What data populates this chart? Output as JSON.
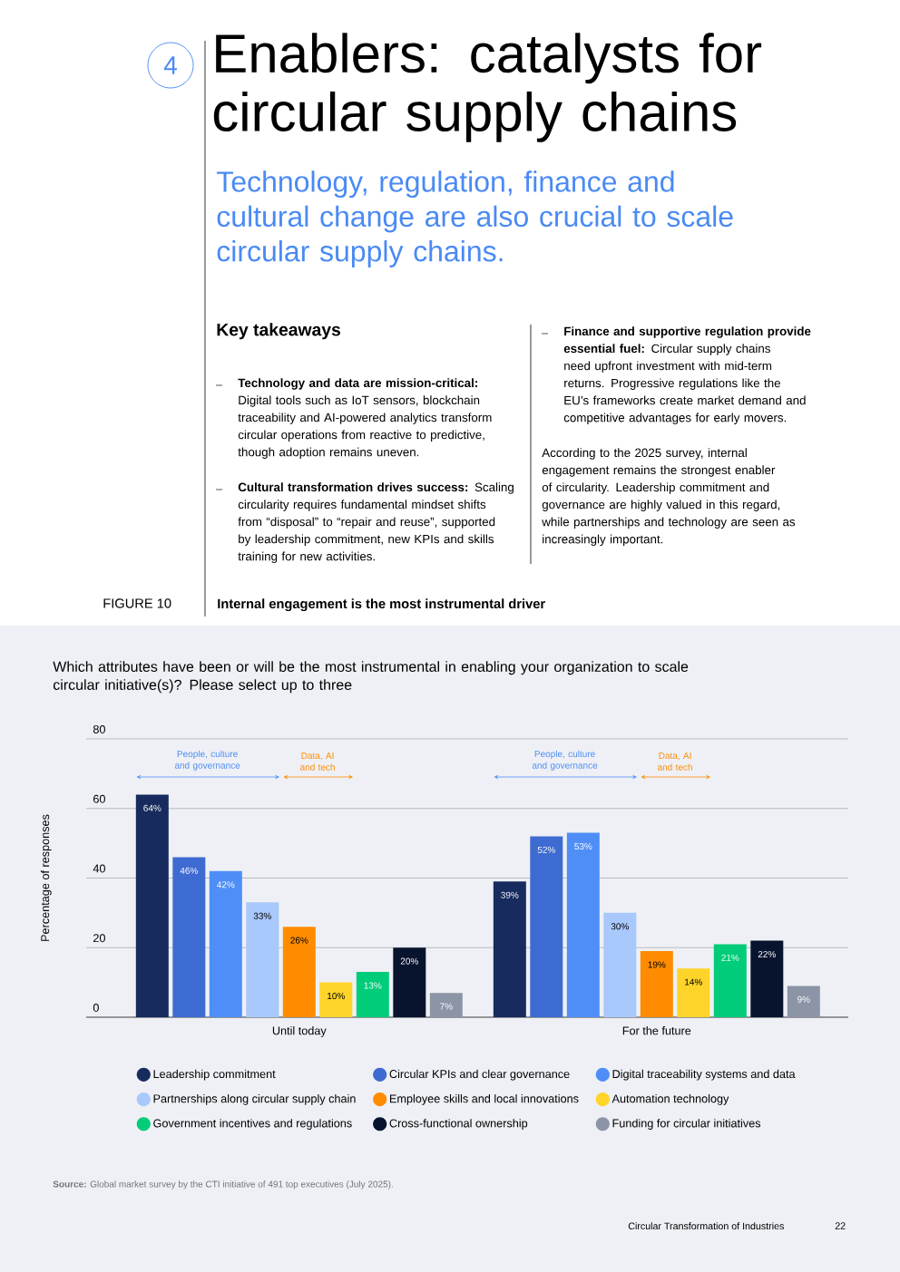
{
  "chart_data": {
    "type": "bar",
    "title": "Internal engagement is the most instrumental driver",
    "subtitle": "Which attributes have been or will be the most instrumental in enabling your organization to scale circular initiative(s)? Please select up to three",
    "ylabel": "Percentage of responses",
    "categories": [
      "Until today",
      "For the future"
    ],
    "series": [
      {
        "name": "Leadership commitment",
        "color": "#172b5e",
        "values": [
          64,
          39
        ],
        "value_labels": [
          "64%",
          "39%"
        ]
      },
      {
        "name": "Circular KPIs and clear governance",
        "color": "#3e6bd1",
        "values": [
          46,
          52
        ],
        "value_labels": [
          "46%",
          "52%"
        ]
      },
      {
        "name": "Digital traceability systems and data",
        "color": "#4f8ef7",
        "values": [
          42,
          53
        ],
        "value_labels": [
          "42%",
          "53%"
        ]
      },
      {
        "name": "Partnerships along circular supply chain",
        "color": "#a9c8fb",
        "values": [
          33,
          30
        ],
        "value_labels": [
          "33%",
          "30%"
        ]
      },
      {
        "name": "Employee skills and local innovations",
        "color": "#ff8c00",
        "values": [
          26,
          19
        ],
        "value_labels": [
          "26%",
          "19%"
        ]
      },
      {
        "name": "Automation technology",
        "color": "#ffd42a",
        "values": [
          10,
          14
        ],
        "value_labels": [
          "10%",
          "14%"
        ]
      },
      {
        "name": "Government incentives and regulations",
        "color": "#00cc7a",
        "values": [
          13,
          21
        ],
        "value_labels": [
          "13%",
          "21%"
        ]
      },
      {
        "name": "Cross-functional ownership",
        "color": "#08142e",
        "values": [
          20,
          22
        ],
        "value_labels": [
          "20%",
          "22%"
        ]
      },
      {
        "name": "Funding for circular initiatives",
        "color": "#8c95a6",
        "values": [
          7,
          9
        ],
        "value_labels": [
          "7%",
          "9%"
        ]
      }
    ],
    "ylim": [
      0,
      80
    ],
    "yticks": [
      0,
      20,
      40,
      60,
      80
    ],
    "grid": "y",
    "legend": "bottom",
    "annotations": [
      "4",
      "Enablers: catalysts for circular supply chains",
      "Technology, regulation, finance and cultural change are also crucial to scale circular supply chains.",
      "Key takeaways",
      "**Technology and data are mission-critical:** Digital tools such as IoT sensors, blockchain traceability and AI-powered analytics transform circular operations from reactive to predictive, though adoption remains uneven.",
      "**Cultural transformation drives success:** Scaling circularity requires fundamental mindset shifts from “disposal” to “repair and reuse”, supported by leadership commitment, new KPIs and skills training for new activities.",
      "**Finance and supportive regulation provide essential fuel:** Circular supply chains need upfront investment with mid-term returns. Progressive regulations like the EU’s frameworks create market demand and competitive advantages for early movers.",
      "According to the 2025 survey, internal engagement remains the strongest enabler of circularity. Leadership commitment and governance are highly valued in this regard, while partnerships and technology are seen as increasingly important.",
      "FIGURE 10",
      "People, culture and governance",
      "Data, AI and tech",
      "People, culture and governance",
      "Data, AI and tech",
      "**Source:** Global market survey by the CTI initiative of 491 top executives (July 2025).",
      "Circular Transformation of Industries",
      "22"
    ]
  }
}
